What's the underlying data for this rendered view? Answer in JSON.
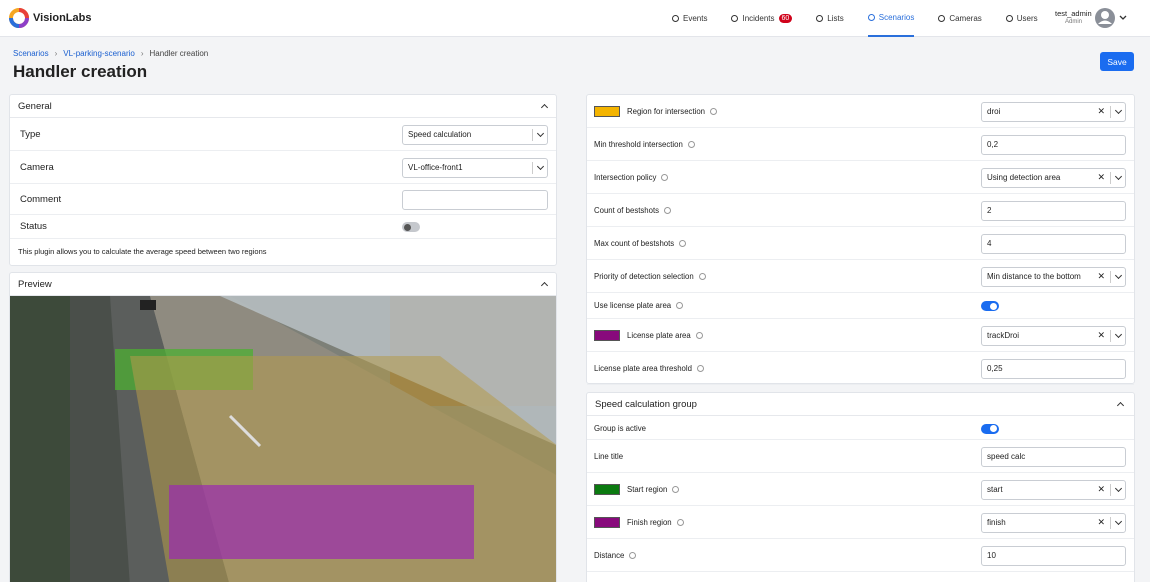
{
  "header": {
    "brand": "VisionLabs",
    "nav": [
      {
        "label": "Events"
      },
      {
        "label": "Incidents",
        "badge": 60
      },
      {
        "label": "Lists"
      },
      {
        "label": "Scenarios",
        "active": true
      },
      {
        "label": "Cameras"
      },
      {
        "label": "Users"
      }
    ],
    "user": {
      "name": "test_admin",
      "role": "Admin"
    }
  },
  "breadcrumbs": [
    "Scenarios",
    "VL-parking-scenario",
    "Handler creation"
  ],
  "title": "Handler creation",
  "save_button": "Save",
  "general": {
    "title": "General",
    "rows": [
      {
        "label": "Type",
        "value": "Speed calculation",
        "control": "select"
      },
      {
        "label": "Camera",
        "value": "VL-office-front1",
        "control": "select"
      },
      {
        "label": "Comment",
        "control": "input"
      },
      {
        "label": "Status",
        "control": "toggle",
        "on": false
      }
    ],
    "description": "This plugin allows you to calculate the average speed between two regions"
  },
  "preview": {
    "title": "Preview"
  },
  "settings": {
    "rows": [
      {
        "label": "Region for intersection",
        "color": "#f4b400",
        "info": true,
        "control": "select",
        "clearable": true,
        "value": "droi"
      },
      {
        "label": "Min threshold intersection",
        "info": true,
        "control": "input",
        "value": "0,2"
      },
      {
        "label": "Intersection policy",
        "info": true,
        "control": "select",
        "clearable": true,
        "value": "Using detection area"
      },
      {
        "label": "Count of bestshots",
        "info": true,
        "control": "input",
        "value": "2"
      },
      {
        "label": "Max count of bestshots",
        "info": true,
        "control": "input",
        "value": "4"
      },
      {
        "label": "Priority of detection selection",
        "info": true,
        "control": "select",
        "clearable": true,
        "value": "Min distance to the bottom"
      },
      {
        "label": "Use license plate area",
        "info": true,
        "control": "toggle",
        "on": true
      },
      {
        "label": "License plate area",
        "color": "#880a7c",
        "info": true,
        "control": "select",
        "clearable": true,
        "value": "trackDroi"
      },
      {
        "label": "License plate area threshold",
        "info": true,
        "control": "input",
        "value": "0,25"
      }
    ]
  },
  "group": {
    "title": "Speed calculation group",
    "rows": [
      {
        "label": "Group is active",
        "control": "toggle",
        "on": true
      },
      {
        "label": "Line title",
        "control": "input",
        "value": "speed calc"
      },
      {
        "label": "Start region",
        "color": "#0b7a10",
        "info": true,
        "control": "select",
        "clearable": true,
        "value": "start"
      },
      {
        "label": "Finish region",
        "color": "#880a7c",
        "info": true,
        "control": "select",
        "clearable": true,
        "value": "finish"
      },
      {
        "label": "Distance",
        "info": true,
        "control": "input",
        "value": "10"
      }
    ]
  }
}
